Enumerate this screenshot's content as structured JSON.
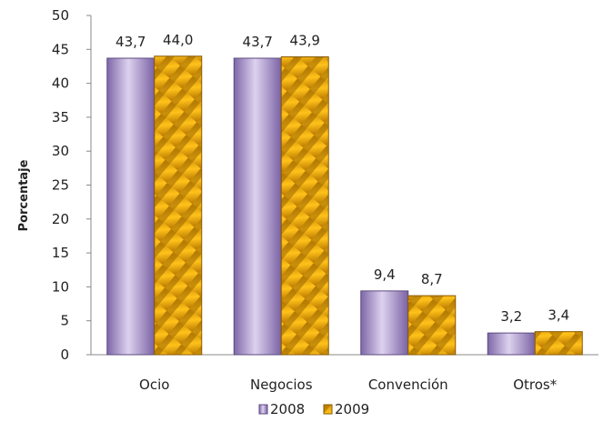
{
  "chart_data": {
    "type": "bar",
    "title": "",
    "xlabel": "",
    "ylabel": "Porcentaje",
    "categories": [
      "Ocio",
      "Negocios",
      "Convención",
      "Otros*"
    ],
    "series": [
      {
        "name": "2008",
        "values": [
          43.7,
          43.7,
          9.4,
          3.2
        ],
        "labels": [
          "43,7",
          "43,7",
          "9,4",
          "3,2"
        ],
        "color": "#a58fc4"
      },
      {
        "name": "2009",
        "values": [
          44.0,
          43.9,
          8.7,
          3.4
        ],
        "labels": [
          "44,0",
          "43,9",
          "8,7",
          "3,4"
        ],
        "color": "#f0a800"
      }
    ],
    "ylim": [
      0,
      50
    ],
    "yticks": [
      0,
      5,
      10,
      15,
      20,
      25,
      30,
      35,
      40,
      45,
      50
    ],
    "grid": false,
    "legend": "bottom"
  }
}
